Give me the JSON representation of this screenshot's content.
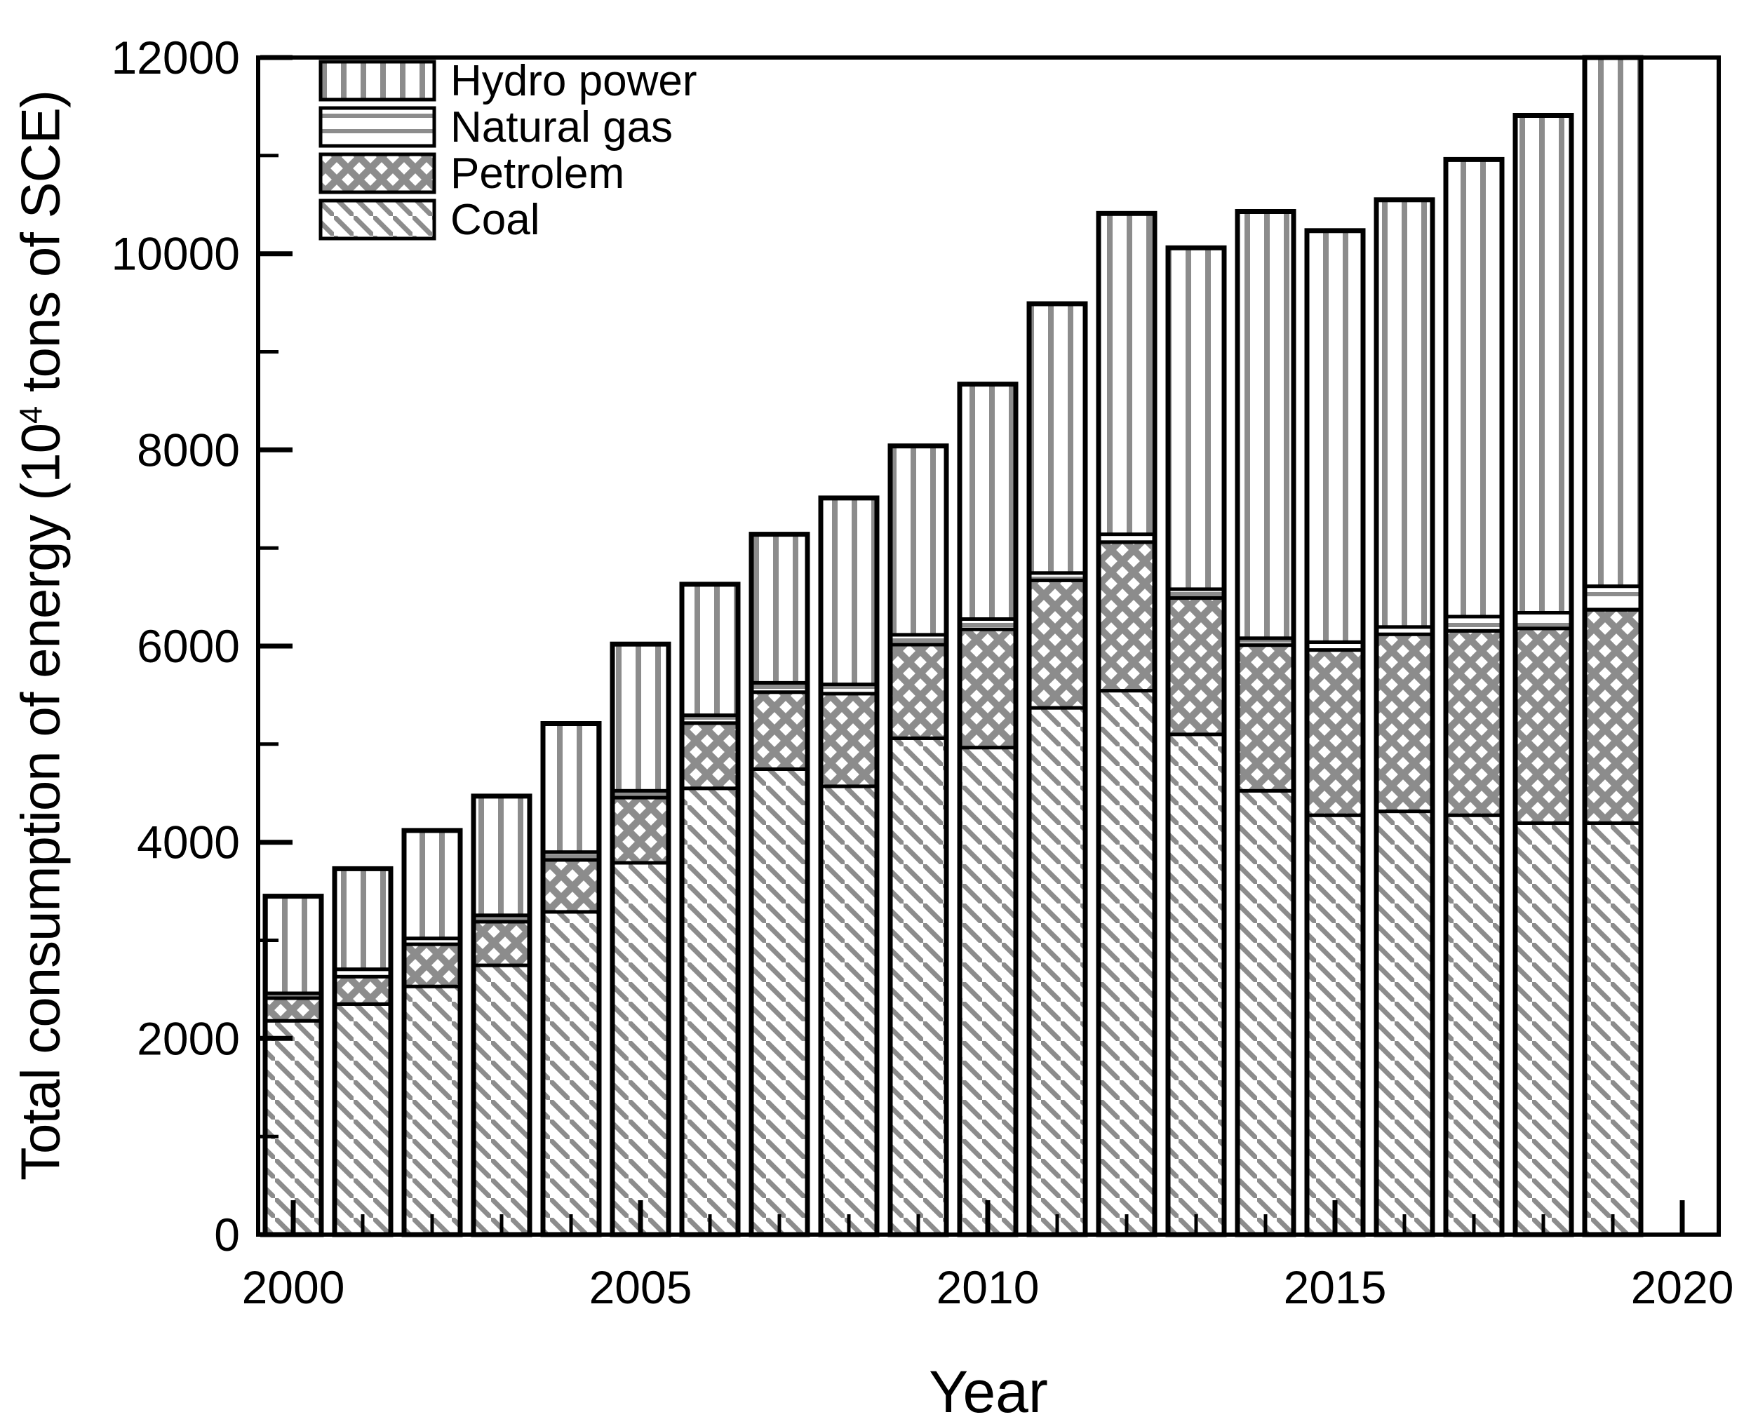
{
  "figure": {
    "background_color": "#ffffff",
    "hatch_color": "#8c8c8c",
    "line_color": "#000000"
  },
  "axes": {
    "y": {
      "title": "Total consumption of energy (10^4 tons of SCE)",
      "title_prefix": "Total consumption of energy (10",
      "title_sup": "4",
      "title_suffix": " tons of SCE)",
      "min": 0,
      "max": 12000,
      "major_ticks": [
        0,
        2000,
        4000,
        6000,
        8000,
        10000,
        12000
      ],
      "minor_ticks": [
        1000,
        3000,
        5000,
        7000,
        9000,
        11000
      ]
    },
    "x": {
      "title": "Year",
      "major_ticks": [
        2000,
        2005,
        2010,
        2015,
        2020
      ],
      "minor_tick_years": [
        2001,
        2002,
        2003,
        2004,
        2006,
        2007,
        2008,
        2009,
        2011,
        2012,
        2013,
        2014,
        2016,
        2017,
        2018,
        2019
      ]
    }
  },
  "legend": {
    "items": [
      {
        "label": "Hydro power",
        "pattern": "vertical-lines"
      },
      {
        "label": "Natural gas",
        "pattern": "horizontal-lines"
      },
      {
        "label": "Petrolem",
        "pattern": "crosshatch"
      },
      {
        "label": "Coal",
        "pattern": "diagonal-lines"
      }
    ]
  },
  "chart_data": {
    "type": "bar",
    "stacked": true,
    "title": "",
    "xlabel": "Year",
    "ylabel": "Total consumption of energy (10^4 tons of SCE)",
    "ylim": [
      0,
      12000
    ],
    "grid": false,
    "legend_position": "upper-left-inside",
    "categories": [
      2000,
      2001,
      2002,
      2003,
      2004,
      2005,
      2006,
      2007,
      2008,
      2009,
      2010,
      2011,
      2012,
      2013,
      2014,
      2015,
      2016,
      2017,
      2018,
      2019
    ],
    "series": [
      {
        "name": "Coal",
        "pattern": "diagonal-lines",
        "values": [
          2180,
          2350,
          2530,
          2745,
          3290,
          3790,
          4550,
          4745,
          4570,
          5060,
          4965,
          5370,
          5545,
          5100,
          4525,
          4275,
          4315,
          4275,
          4195,
          4195
        ]
      },
      {
        "name": "Petrolem",
        "pattern": "crosshatch",
        "values": [
          230,
          280,
          430,
          445,
          530,
          665,
          665,
          785,
          945,
          955,
          1205,
          1300,
          1515,
          1390,
          1485,
          1685,
          1805,
          1880,
          1985,
          2175
        ]
      },
      {
        "name": "Natural gas",
        "pattern": "horizontal-lines",
        "values": [
          50,
          75,
          60,
          65,
          80,
          70,
          80,
          95,
          95,
          100,
          105,
          75,
          80,
          90,
          70,
          80,
          75,
          145,
          160,
          240
        ]
      },
      {
        "name": "Hydro power",
        "pattern": "vertical-lines",
        "values": [
          990,
          1025,
          1100,
          1215,
          1310,
          1495,
          1335,
          1515,
          1900,
          1925,
          2395,
          2745,
          3270,
          3480,
          4350,
          4195,
          4355,
          4660,
          5070,
          5390
        ]
      }
    ],
    "totals": [
      3450,
      3730,
      4120,
      4470,
      5210,
      6020,
      6630,
      7140,
      7510,
      8040,
      8670,
      9490,
      10410,
      10060,
      10430,
      10235,
      10550,
      10960,
      11410,
      12000
    ],
    "note": "2019 bar reaches the upper axis limit (clipped at 12000)"
  }
}
